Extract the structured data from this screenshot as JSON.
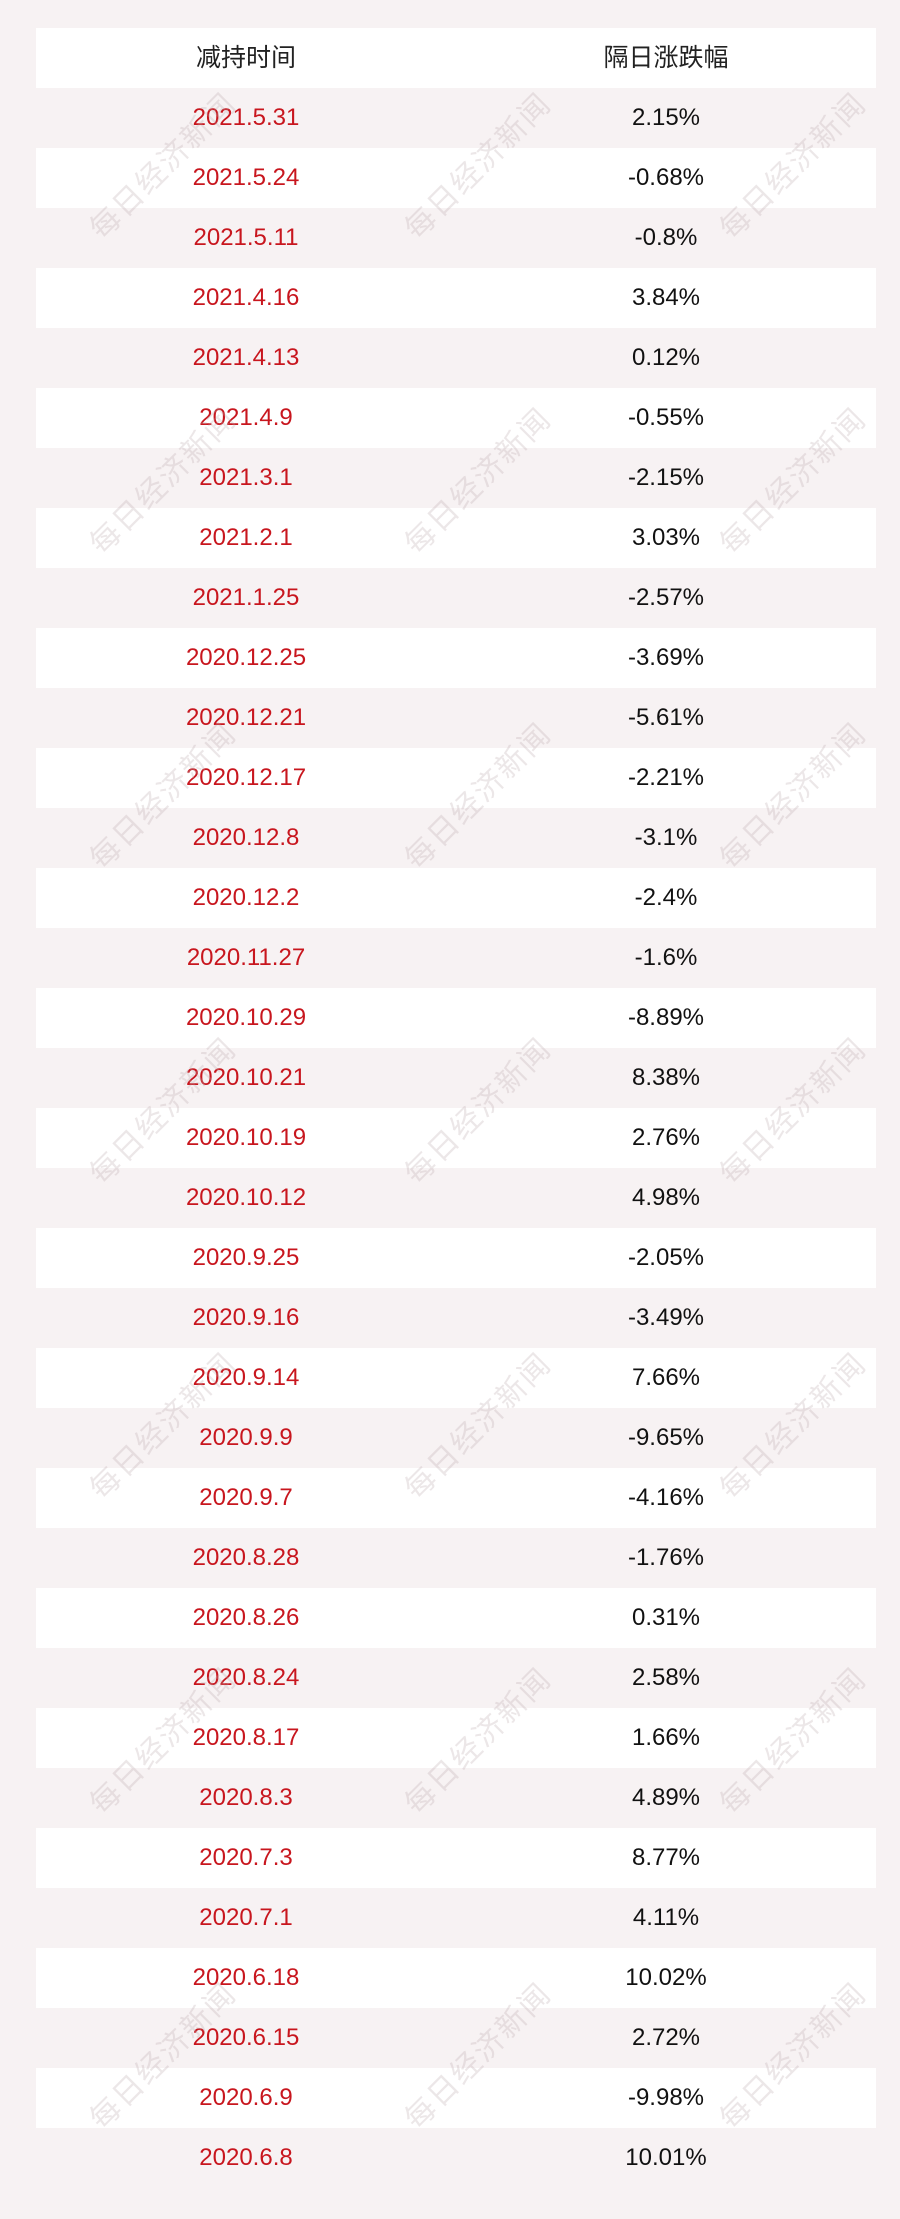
{
  "table": {
    "headers": [
      "减持时间",
      "隔日涨跌幅"
    ],
    "rows": [
      {
        "date": "2021.5.31",
        "change": "2.15%"
      },
      {
        "date": "2021.5.24",
        "change": "-0.68%"
      },
      {
        "date": "2021.5.11",
        "change": "-0.8%"
      },
      {
        "date": "2021.4.16",
        "change": "3.84%"
      },
      {
        "date": "2021.4.13",
        "change": "0.12%"
      },
      {
        "date": "2021.4.9",
        "change": "-0.55%"
      },
      {
        "date": "2021.3.1",
        "change": "-2.15%"
      },
      {
        "date": "2021.2.1",
        "change": "3.03%"
      },
      {
        "date": "2021.1.25",
        "change": "-2.57%"
      },
      {
        "date": "2020.12.25",
        "change": "-3.69%"
      },
      {
        "date": "2020.12.21",
        "change": "-5.61%"
      },
      {
        "date": "2020.12.17",
        "change": "-2.21%"
      },
      {
        "date": "2020.12.8",
        "change": "-3.1%"
      },
      {
        "date": "2020.12.2",
        "change": "-2.4%"
      },
      {
        "date": "2020.11.27",
        "change": "-1.6%"
      },
      {
        "date": "2020.10.29",
        "change": "-8.89%"
      },
      {
        "date": "2020.10.21",
        "change": "8.38%"
      },
      {
        "date": "2020.10.19",
        "change": "2.76%"
      },
      {
        "date": "2020.10.12",
        "change": "4.98%"
      },
      {
        "date": "2020.9.25",
        "change": "-2.05%"
      },
      {
        "date": "2020.9.16",
        "change": "-3.49%"
      },
      {
        "date": "2020.9.14",
        "change": "7.66%"
      },
      {
        "date": "2020.9.9",
        "change": "-9.65%"
      },
      {
        "date": "2020.9.7",
        "change": "-4.16%"
      },
      {
        "date": "2020.8.28",
        "change": "-1.76%"
      },
      {
        "date": "2020.8.26",
        "change": "0.31%"
      },
      {
        "date": "2020.8.24",
        "change": "2.58%"
      },
      {
        "date": "2020.8.17",
        "change": "1.66%"
      },
      {
        "date": "2020.8.3",
        "change": "4.89%"
      },
      {
        "date": "2020.7.3",
        "change": "8.77%"
      },
      {
        "date": "2020.7.1",
        "change": "4.11%"
      },
      {
        "date": "2020.6.18",
        "change": "10.02%"
      },
      {
        "date": "2020.6.15",
        "change": "2.72%"
      },
      {
        "date": "2020.6.9",
        "change": "-9.98%"
      },
      {
        "date": "2020.6.8",
        "change": "10.01%"
      }
    ]
  },
  "watermark": {
    "text": "每日经济新闻"
  },
  "colors": {
    "date_text": "#c8161e",
    "value_text": "#111111",
    "row_white": "#ffffff",
    "row_tint": "#f7f2f3"
  }
}
